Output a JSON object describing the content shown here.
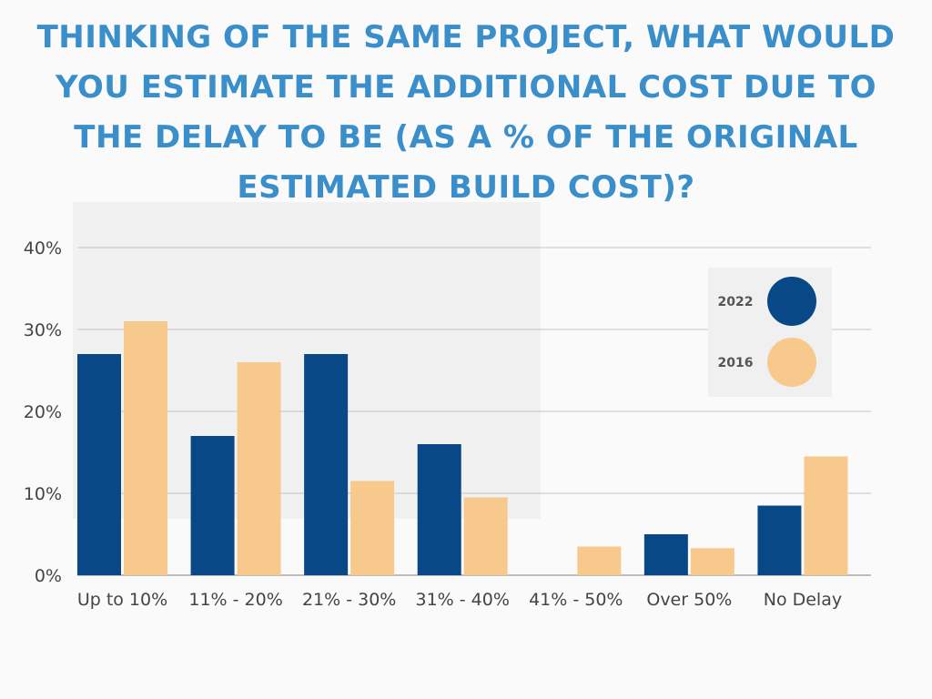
{
  "chart_data": {
    "type": "bar",
    "title": "Thinking of the same project, what would you estimate the additional cost due to the delay to be (as a % of the original estimated build cost)?",
    "categories": [
      "Up to 10%",
      "11% - 20%",
      "21% - 30%",
      "31% - 40%",
      "41% - 50%",
      "Over 50%",
      "No Delay"
    ],
    "series": [
      {
        "name": "2022",
        "color": "#084887",
        "values": [
          27,
          17,
          27,
          16,
          0,
          5,
          8.5
        ]
      },
      {
        "name": "2016",
        "color": "#f8c98d",
        "values": [
          31,
          26,
          11.5,
          9.5,
          3.5,
          3.3,
          14.5
        ]
      }
    ],
    "ylim": [
      0,
      40
    ],
    "yticks": [
      "0%",
      "10%",
      "20%",
      "30%",
      "40%"
    ],
    "grid": true,
    "legend_position": "top-right"
  }
}
